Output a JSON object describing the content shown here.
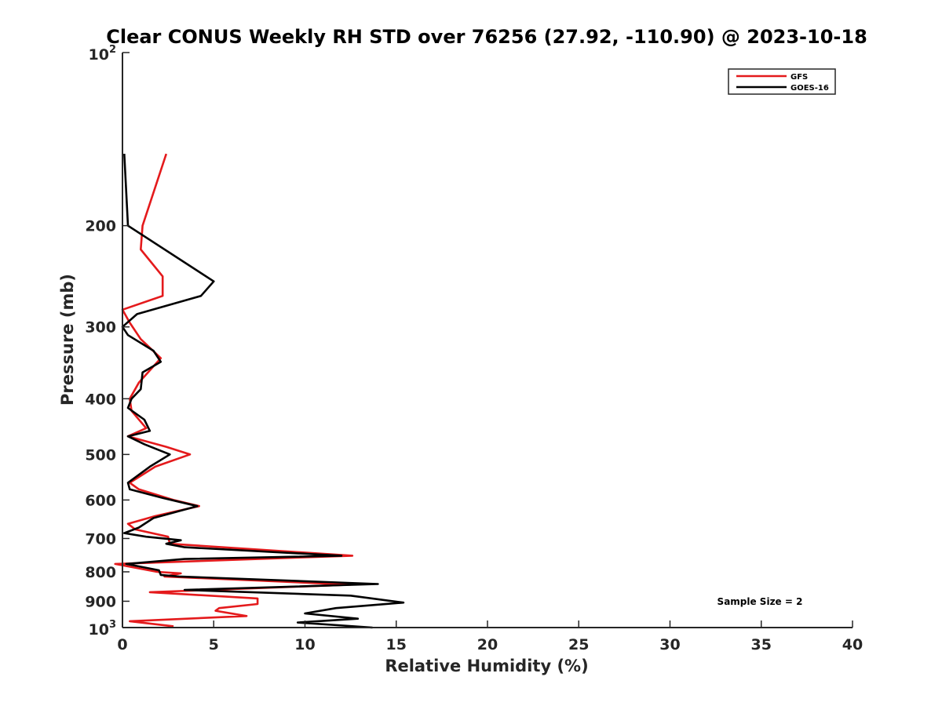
{
  "chart_data": {
    "type": "line",
    "title": "Clear CONUS Weekly RH STD over 76256 (27.92, -110.90) @ 2023-10-18",
    "xlabel": "Relative Humidity (%)",
    "ylabel": "Pressure (mb)",
    "xlim": [
      0,
      40
    ],
    "ylim": [
      100,
      1000
    ],
    "yscale": "log",
    "y_reversed": true,
    "x_ticks": [
      0,
      5,
      10,
      15,
      20,
      25,
      30,
      35,
      40
    ],
    "x_tick_labels": [
      "0",
      "5",
      "10",
      "15",
      "20",
      "25",
      "30",
      "35",
      "40"
    ],
    "y_ticks": [
      200,
      300,
      400,
      500,
      600,
      700,
      800,
      900
    ],
    "y_tick_labels": [
      "200",
      "300",
      "400",
      "500",
      "600",
      "700",
      "800",
      "900"
    ],
    "y_top_label": {
      "base": "10",
      "exp": "2"
    },
    "y_bottom_label": {
      "base": "10",
      "exp": "3"
    },
    "grid": false,
    "legend_position": "top-right",
    "annotation": "Sample Size = 2",
    "series": [
      {
        "name": "GFS",
        "color": "#e41a1c",
        "x": [
          2.4,
          1.1,
          1.0,
          2.2,
          2.2,
          0.0,
          0.4,
          1.0,
          2.1,
          0.9,
          0.4,
          0.5,
          1.3,
          0.3,
          2.4,
          3.7,
          1.8,
          0.4,
          0.9,
          2.8,
          4.2,
          1.8,
          0.3,
          0.7,
          2.5,
          2.6,
          12.6,
          -0.4,
          1.9,
          3.2,
          2.3,
          12.5,
          1.5,
          7.4,
          7.4,
          5.3,
          5.1,
          6.8,
          0.4,
          2.8
        ],
        "y": [
          150,
          200,
          220,
          245,
          265,
          280,
          295,
          315,
          340,
          375,
          400,
          420,
          450,
          465,
          485,
          500,
          525,
          560,
          575,
          600,
          615,
          640,
          660,
          675,
          695,
          715,
          750,
          775,
          800,
          805,
          815,
          842,
          868,
          890,
          910,
          925,
          935,
          955,
          975,
          995
        ]
      },
      {
        "name": "GOES-16",
        "color": "#000000",
        "x": [
          0.1,
          0.3,
          5.0,
          4.3,
          0.8,
          0.0,
          0.3,
          1.7,
          2.1,
          1.1,
          1.0,
          0.5,
          0.3,
          1.2,
          1.5,
          0.3,
          1.2,
          2.6,
          1.5,
          0.3,
          0.4,
          2.2,
          4.1,
          1.7,
          0.9,
          0.1,
          1.3,
          3.2,
          2.4,
          3.4,
          12.0,
          3.4,
          0.2,
          2.0,
          2.1,
          3.1,
          14.0,
          3.4,
          12.5,
          15.4,
          11.7,
          10.0,
          12.9,
          9.6,
          13.7
        ],
        "y": [
          150,
          200,
          250,
          265,
          285,
          300,
          310,
          330,
          345,
          360,
          385,
          400,
          415,
          435,
          455,
          465,
          480,
          500,
          525,
          560,
          575,
          595,
          615,
          645,
          670,
          685,
          695,
          705,
          715,
          725,
          750,
          760,
          775,
          795,
          810,
          815,
          840,
          860,
          880,
          905,
          925,
          945,
          965,
          980,
          1000
        ]
      }
    ]
  }
}
